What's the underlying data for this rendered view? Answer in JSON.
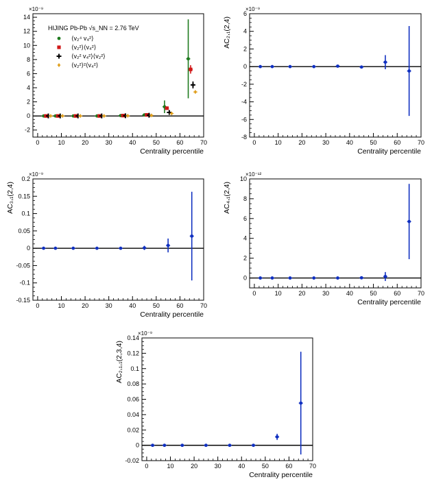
{
  "chart_data": [
    {
      "type": "scatter",
      "panel": "panel-1",
      "title": "HIJING Pb-Pb",
      "energy_label": "√s_NN = 2.76 TeV",
      "xlabel": "Centrality percentile",
      "ylabel": "",
      "y_exponent": "×10⁻⁹",
      "xlim": [
        -2,
        70
      ],
      "ylim": [
        -3,
        14.5
      ],
      "xticks": [
        0,
        10,
        20,
        30,
        40,
        50,
        60,
        70
      ],
      "yticks": [
        -2,
        0,
        2,
        4,
        6,
        8,
        10,
        12,
        14
      ],
      "grid": false,
      "legend_position": "top-left",
      "series": [
        {
          "name": "⟨v₂⁴ v₄²⟩",
          "color": "#1e7a1e",
          "marker": "circle",
          "x": [
            2.5,
            7.5,
            15,
            25,
            35,
            45,
            53.5,
            63.5
          ],
          "y": [
            0,
            0,
            0,
            0,
            0.05,
            0.15,
            1.3,
            8.1
          ],
          "err": [
            0.02,
            0.02,
            0.02,
            0.03,
            0.05,
            0.1,
            0.9,
            5.6
          ]
        },
        {
          "name": "⟨v₂²⟩⟨v₄²⟩",
          "color": "#d01818",
          "marker": "square",
          "x": [
            3.5,
            8.5,
            16,
            26,
            36,
            46,
            54.5,
            64.5
          ],
          "y": [
            0,
            0,
            0,
            0,
            0.05,
            0.15,
            1.1,
            6.6
          ],
          "err": [
            0.01,
            0.01,
            0.01,
            0.02,
            0.03,
            0.05,
            0.2,
            0.6
          ]
        },
        {
          "name": "⟨v₂² v₄²⟩⟨v₂²⟩",
          "color": "#000000",
          "marker": "cross",
          "x": [
            4.5,
            9.5,
            17,
            27,
            37,
            47,
            55.5,
            65.5
          ],
          "y": [
            0,
            0,
            0,
            0,
            0.03,
            0.1,
            0.5,
            4.4
          ],
          "err": [
            0.01,
            0.01,
            0.01,
            0.02,
            0.03,
            0.05,
            0.15,
            0.5
          ]
        },
        {
          "name": "⟨v₂²⟩²⟨v₄²⟩",
          "color": "#e0a020",
          "marker": "diamond",
          "x": [
            5.5,
            10.5,
            18,
            28,
            38,
            48,
            56.5,
            66.5
          ],
          "y": [
            0,
            0,
            0,
            0,
            0.02,
            0.08,
            0.35,
            3.4
          ],
          "err": [
            0.01,
            0.01,
            0.01,
            0.01,
            0.02,
            0.03,
            0.05,
            0.2
          ]
        }
      ]
    },
    {
      "type": "scatter",
      "panel": "panel-2",
      "xlabel": "Centrality percentile",
      "ylabel": "AC₂,₁(2,4)",
      "y_exponent": "×10⁻⁹",
      "xlim": [
        -2,
        70
      ],
      "ylim": [
        -8,
        6
      ],
      "xticks": [
        0,
        10,
        20,
        30,
        40,
        50,
        60,
        70
      ],
      "yticks": [
        -8,
        -6,
        -4,
        -2,
        0,
        2,
        4,
        6
      ],
      "grid": false,
      "series": [
        {
          "color": "#1030c0",
          "marker": "circle",
          "x": [
            2.5,
            7.5,
            15,
            25,
            35,
            45,
            55,
            65
          ],
          "y": [
            0,
            0,
            0,
            0,
            0.05,
            -0.05,
            0.5,
            -0.5
          ],
          "err": [
            0.02,
            0.02,
            0.03,
            0.04,
            0.06,
            0.1,
            0.8,
            5.1
          ]
        }
      ]
    },
    {
      "type": "scatter",
      "panel": "panel-3",
      "xlabel": "Centrality percentile",
      "ylabel": "AC₃,₁(2,4)",
      "y_exponent": "×10⁻⁹",
      "xlim": [
        -2,
        70
      ],
      "ylim": [
        -0.15,
        0.2
      ],
      "xticks": [
        0,
        10,
        20,
        30,
        40,
        50,
        60,
        70
      ],
      "yticks": [
        -0.15,
        -0.1,
        -0.05,
        0,
        0.05,
        0.1,
        0.15,
        0.2
      ],
      "grid": false,
      "series": [
        {
          "color": "#1030c0",
          "marker": "circle",
          "x": [
            2.5,
            7.5,
            15,
            25,
            35,
            45,
            55,
            65
          ],
          "y": [
            0,
            0,
            0,
            0,
            0,
            0.001,
            0.008,
            0.035
          ],
          "err": [
            0.001,
            0.001,
            0.001,
            0.001,
            0.002,
            0.006,
            0.02,
            0.128
          ]
        }
      ]
    },
    {
      "type": "scatter",
      "panel": "panel-4",
      "xlabel": "Centrality percentile",
      "ylabel": "AC₄,₁(2,4)",
      "y_exponent": "×10⁻¹²",
      "xlim": [
        -2,
        70
      ],
      "ylim": [
        -1,
        10
      ],
      "xticks": [
        0,
        10,
        20,
        30,
        40,
        50,
        60,
        70
      ],
      "yticks": [
        0,
        2,
        4,
        6,
        8,
        10
      ],
      "grid": false,
      "series": [
        {
          "color": "#1030c0",
          "marker": "circle",
          "x": [
            2.5,
            7.5,
            15,
            25,
            35,
            45,
            55,
            65
          ],
          "y": [
            0,
            0,
            0,
            0,
            0,
            0.02,
            0.15,
            5.7
          ],
          "err": [
            0.01,
            0.01,
            0.01,
            0.02,
            0.03,
            0.06,
            0.45,
            3.8
          ]
        }
      ]
    },
    {
      "type": "scatter",
      "panel": "panel-5",
      "xlabel": "Centrality percentile",
      "ylabel": "AC₂,₁,₁(2,3,4)",
      "y_exponent": "×10⁻⁹",
      "xlim": [
        -2,
        70
      ],
      "ylim": [
        -0.02,
        0.14
      ],
      "xticks": [
        0,
        10,
        20,
        30,
        40,
        50,
        60,
        70
      ],
      "yticks": [
        -0.02,
        0,
        0.02,
        0.04,
        0.06,
        0.08,
        0.1,
        0.12,
        0.14
      ],
      "grid": false,
      "series": [
        {
          "color": "#1030c0",
          "marker": "circle",
          "x": [
            2.5,
            7.5,
            15,
            25,
            35,
            45,
            55,
            65
          ],
          "y": [
            0,
            0,
            0,
            0,
            0,
            0,
            0.011,
            0.055
          ],
          "err": [
            0.0005,
            0.0005,
            0.0005,
            0.0005,
            0.0008,
            0.001,
            0.004,
            0.067
          ]
        }
      ]
    }
  ]
}
